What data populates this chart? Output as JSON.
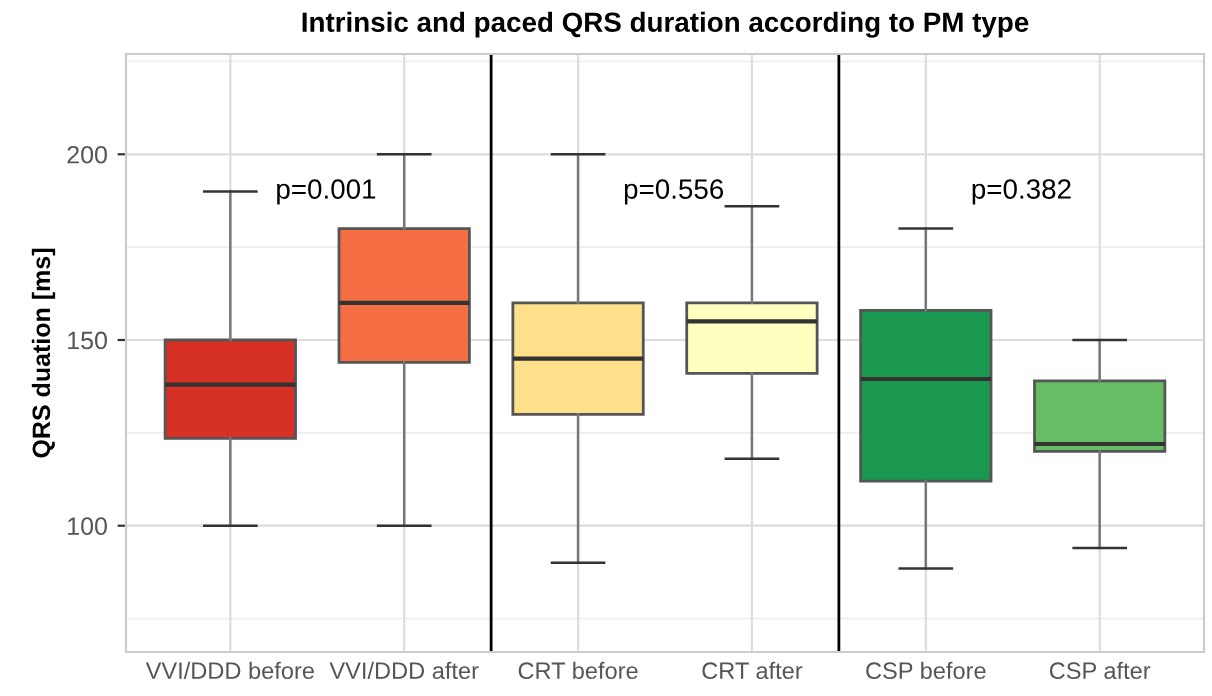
{
  "chart_data": {
    "type": "box",
    "title": "Intrinsic and paced QRS duration according to PM type",
    "ylabel": "QRS duation [ms]",
    "categories": [
      "VVI/DDD before",
      "VVI/DDD after",
      "CRT before",
      "CRT after",
      "CSP before",
      "CSP after"
    ],
    "colors": [
      "#d73027",
      "#f46d43",
      "#fee08b",
      "#ffffbf",
      "#1a9850",
      "#66bd63"
    ],
    "boxes": [
      {
        "low": 100,
        "q1": 123.5,
        "median": 138,
        "q3": 150,
        "high": 190
      },
      {
        "low": 100,
        "q1": 144,
        "median": 160,
        "q3": 180,
        "high": 200
      },
      {
        "low": 90,
        "q1": 130,
        "median": 145,
        "q3": 160,
        "high": 200
      },
      {
        "low": 118,
        "q1": 141,
        "median": 155,
        "q3": 160,
        "high": 186
      },
      {
        "low": 88.5,
        "q1": 112,
        "median": 139.5,
        "q3": 158,
        "high": 180
      },
      {
        "low": 94,
        "q1": 120,
        "median": 122,
        "q3": 139,
        "high": 150
      }
    ],
    "ylim": [
      66,
      227
    ],
    "yticks": [
      100,
      150,
      200
    ],
    "grid": true,
    "annotations": [
      "p=0.001",
      "p=0.556",
      "p=0.382"
    ]
  }
}
